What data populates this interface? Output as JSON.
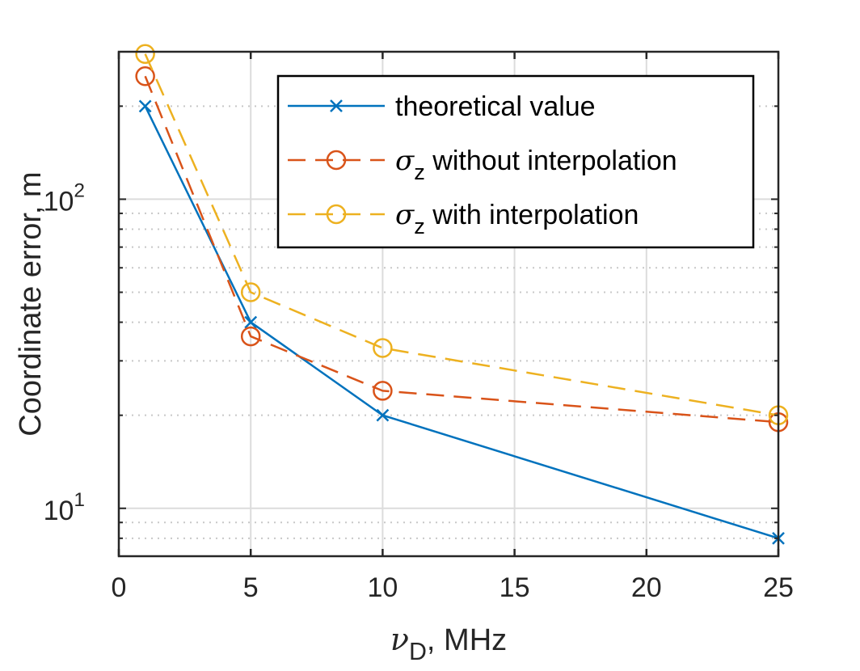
{
  "chart_data": {
    "type": "line",
    "xscale": "linear",
    "yscale": "log",
    "xlim": [
      0,
      25
    ],
    "ylim": [
      7,
      300
    ],
    "xticks": [
      0,
      5,
      10,
      15,
      20,
      25
    ],
    "xtick_labels": [
      "0",
      "5",
      "10",
      "15",
      "20",
      "25"
    ],
    "ytick_major": [
      10,
      100
    ],
    "ytick_minor": [
      8,
      9,
      20,
      30,
      40,
      50,
      60,
      70,
      80,
      90,
      200,
      300
    ],
    "ytick_labels": [
      {
        "value": 10,
        "base": "10",
        "exp": "1"
      },
      {
        "value": 100,
        "base": "10",
        "exp": "2"
      }
    ],
    "xlabel": {
      "symbol": "ν",
      "sub": "D",
      "rest": ", MHz"
    },
    "ylabel": "Coordinate error, m",
    "grid": true,
    "legend_position": "top-right",
    "series": [
      {
        "name": "theoretical value",
        "label": {
          "symbol": "",
          "sub": "",
          "rest": "theoretical value"
        },
        "color": "#0072BD",
        "style": "solid",
        "marker": "x",
        "x": [
          1,
          5,
          10,
          25
        ],
        "y": [
          200,
          40,
          20,
          8
        ]
      },
      {
        "name": "σz without interpolation",
        "label": {
          "symbol": "σ",
          "sub": "z",
          "rest": " without interpolation"
        },
        "color": "#D95319",
        "style": "dashed",
        "marker": "o",
        "x": [
          1,
          5,
          10,
          25
        ],
        "y": [
          250,
          36,
          24,
          19
        ]
      },
      {
        "name": "σz with interpolation",
        "label": {
          "symbol": "σ",
          "sub": "z",
          "rest": " with interpolation"
        },
        "color": "#EDB120",
        "style": "dashed",
        "marker": "o",
        "x": [
          1,
          5,
          10,
          25
        ],
        "y": [
          295,
          50,
          33,
          20
        ]
      }
    ]
  }
}
